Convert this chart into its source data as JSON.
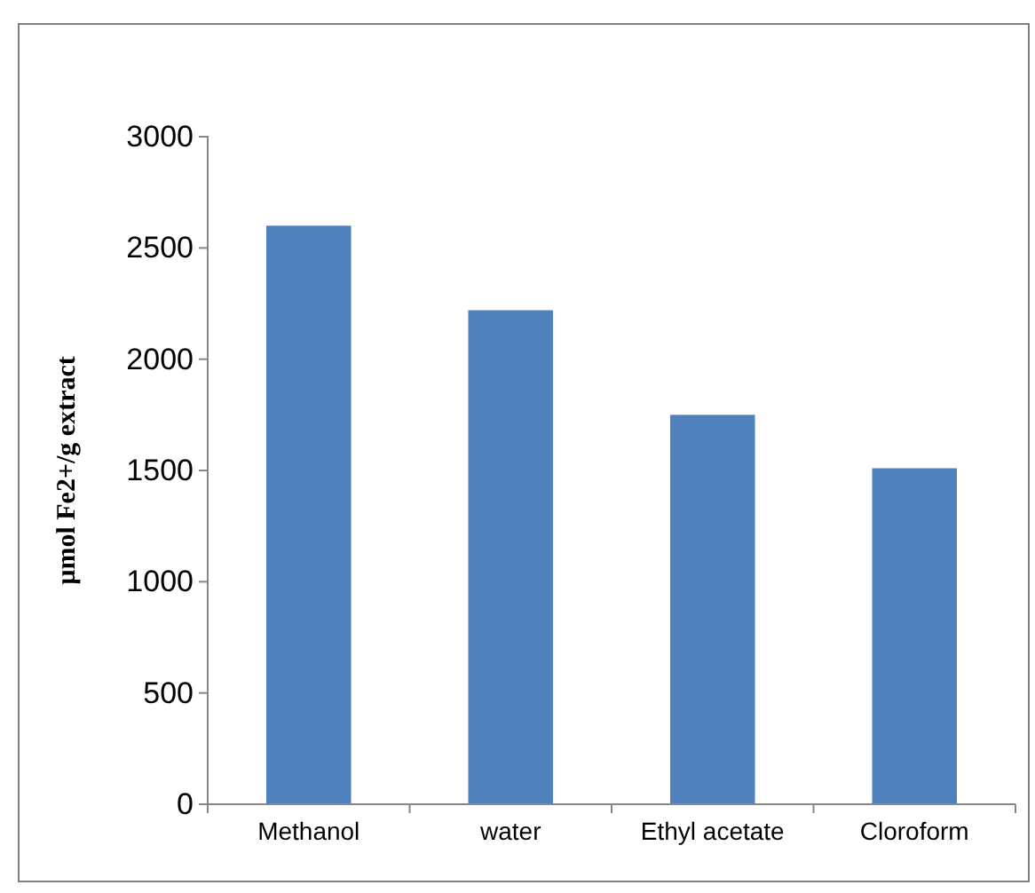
{
  "chart_data": {
    "type": "bar",
    "ylabel": "µmol Fe2+/g extract",
    "categories": [
      "Methanol",
      "water",
      "Ethyl acetate",
      "Cloroform"
    ],
    "values": [
      2600,
      2220,
      1750,
      1510
    ],
    "color": "#4f81bd",
    "ylim": [
      0,
      3000
    ],
    "yticks": [
      0,
      500,
      1000,
      1500,
      2000,
      2500,
      3000
    ],
    "grid": false
  }
}
